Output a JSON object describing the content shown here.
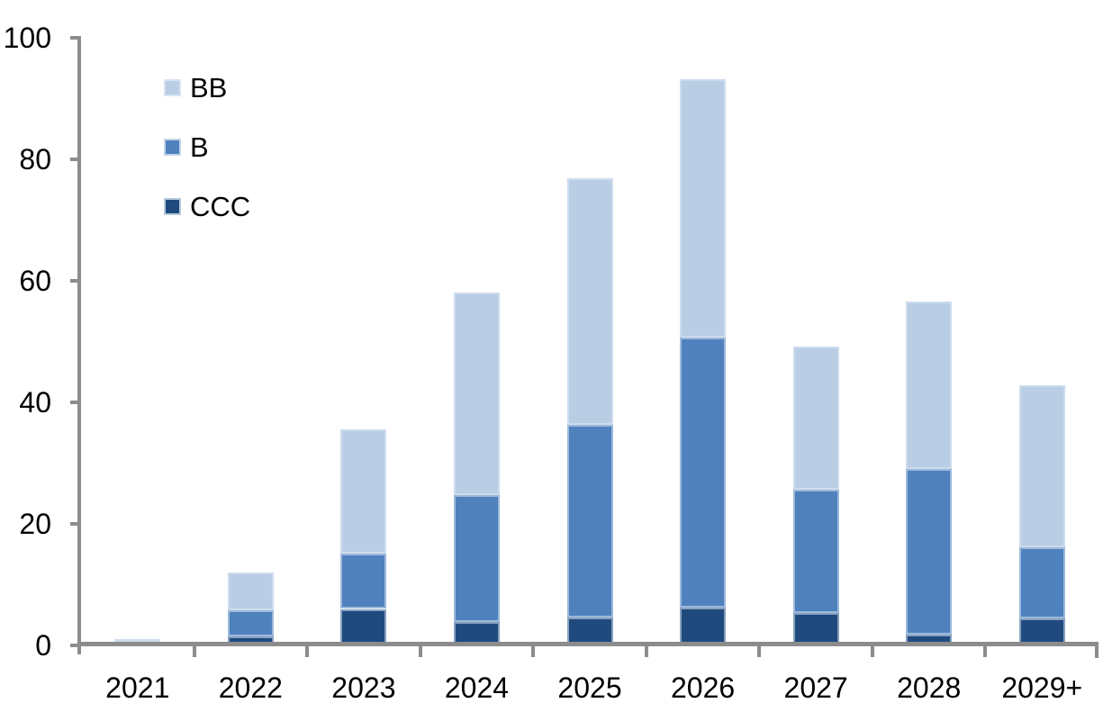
{
  "chart_data": {
    "type": "bar",
    "stacked": true,
    "title": "",
    "xlabel": "",
    "ylabel": "",
    "categories": [
      "2021",
      "2022",
      "2023",
      "2024",
      "2025",
      "2026",
      "2027",
      "2028",
      "2029+"
    ],
    "series": [
      {
        "name": "BB",
        "color": "#b9cde5",
        "values": [
          0.5,
          6.2,
          20.4,
          33.4,
          40.6,
          42.5,
          23.6,
          27.5,
          26.6
        ]
      },
      {
        "name": "B",
        "color": "#4f81bd",
        "values": [
          0.4,
          4.3,
          9.1,
          20.9,
          31.7,
          44.5,
          20.2,
          27.3,
          11.7
        ]
      },
      {
        "name": "CCC",
        "color": "#204a7e",
        "values": [
          0.1,
          1.5,
          6.0,
          3.8,
          4.6,
          6.2,
          5.4,
          1.8,
          4.5
        ]
      }
    ],
    "totals": [
      1.0,
      12.0,
      35.5,
      58.1,
      76.9,
      93.2,
      49.2,
      56.6,
      42.8
    ],
    "y_ticks": [
      0,
      20,
      40,
      60,
      80,
      100
    ],
    "ylim": [
      0,
      100
    ],
    "grid": false,
    "legend_position": "top-left",
    "legend_order": [
      "BB",
      "B",
      "CCC"
    ],
    "axis_color": "#8c8c8c",
    "text_color": "#000000",
    "background_color": "#ffffff"
  }
}
